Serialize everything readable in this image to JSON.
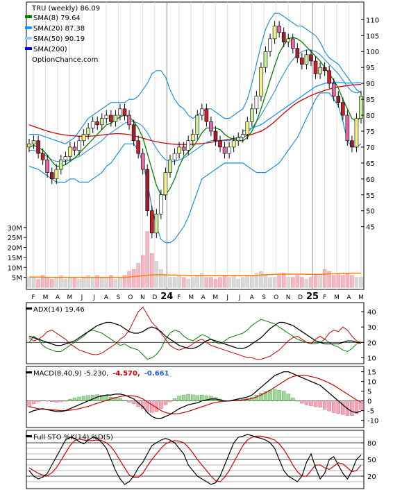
{
  "chart_data": {
    "type": "line",
    "symbol": "TRU",
    "title": "TRU (weekly) 86.09",
    "watermark": "OptionChance.com",
    "x_labels": [
      "F",
      "M",
      "A",
      "M",
      "J",
      "J",
      "A",
      "S",
      "O",
      "N",
      "D",
      "24",
      "F",
      "M",
      "A",
      "M",
      "J",
      "J",
      "A",
      "S",
      "O",
      "N",
      "D",
      "25",
      "F",
      "M",
      "A",
      "M"
    ],
    "legend": [
      {
        "label": "SMA(8) 79.64",
        "color": "#008000"
      },
      {
        "label": "SMA(20) 87.38",
        "color": "#1e90ff"
      },
      {
        "label": "SMA(50) 90.19",
        "color": "#87cefa"
      },
      {
        "label": "SMA(200)",
        "color": "#0000cd"
      }
    ],
    "price_axis": {
      "ticks": [
        110,
        105,
        100,
        95,
        90,
        85,
        80,
        75,
        70,
        65,
        60,
        55,
        50,
        45
      ],
      "ylim": [
        41,
        114
      ]
    },
    "volume_axis": {
      "ticks": [
        "30M",
        "25M",
        "20M",
        "15M",
        "10M",
        "5M"
      ],
      "values": [
        30,
        25,
        20,
        15,
        10,
        5
      ],
      "ylim": [
        0,
        32
      ]
    },
    "series": [
      {
        "name": "Close",
        "values": [
          71,
          72,
          68,
          66,
          62,
          60,
          63,
          66,
          67,
          70,
          69,
          72,
          74,
          76,
          78,
          77,
          79,
          80,
          78,
          80,
          82,
          80,
          77,
          72,
          68,
          63,
          50,
          43,
          49,
          55,
          62,
          66,
          68,
          70,
          69,
          72,
          74,
          80,
          82,
          78,
          75,
          72,
          70,
          68,
          70,
          72,
          73,
          74,
          78,
          82,
          86,
          95,
          100,
          104,
          108,
          106,
          103,
          104,
          101,
          98,
          96,
          99,
          97,
          93,
          95,
          94,
          90,
          86,
          84,
          80,
          72,
          70,
          79,
          86
        ]
      },
      {
        "name": "SMA(8) 79.64",
        "values": [
          70,
          70.5,
          70,
          69,
          67.5,
          65.5,
          64,
          64,
          64.5,
          65.5,
          66.5,
          68,
          69.5,
          71,
          72.5,
          74,
          75.5,
          77,
          77.5,
          78.5,
          79.5,
          80,
          79.5,
          78,
          76,
          73,
          68,
          63,
          58,
          55,
          55,
          57,
          60,
          64,
          67,
          68.5,
          70,
          72,
          74.5,
          76,
          76,
          76,
          75.5,
          74,
          73,
          72.5,
          72,
          72,
          73,
          75,
          78,
          82,
          86.5,
          91,
          95.5,
          99.5,
          102,
          104,
          104.5,
          104,
          103,
          101.5,
          100,
          98.5,
          97,
          95,
          93,
          91,
          88.5,
          85,
          82,
          79,
          78,
          79.6
        ]
      },
      {
        "name": "SMA(20) 87.38",
        "values": [
          69,
          69,
          68.5,
          68,
          67,
          66,
          65.5,
          65.5,
          65.5,
          66,
          66.5,
          67,
          68,
          69,
          70,
          71,
          72,
          73.5,
          74.5,
          75.5,
          76.5,
          77.5,
          78,
          78,
          77.5,
          76.5,
          74.5,
          72,
          69.5,
          67.5,
          66,
          65.5,
          65.5,
          66,
          66.5,
          67.5,
          68.5,
          69.5,
          70.5,
          71.5,
          72,
          72,
          72,
          72,
          72,
          72.5,
          73,
          73.5,
          74.5,
          76,
          78,
          80,
          82.5,
          85,
          87.5,
          90.5,
          93,
          95.5,
          97.5,
          99,
          100,
          100.5,
          100.5,
          100,
          99,
          97.5,
          96,
          94.5,
          93,
          91,
          89,
          87.5,
          87,
          87.4
        ]
      },
      {
        "name": "SMA(50) 90.19",
        "values": [
          null,
          null,
          null,
          null,
          null,
          null,
          null,
          null,
          null,
          null,
          null,
          null,
          null,
          null,
          null,
          null,
          null,
          null,
          null,
          null,
          null,
          null,
          null,
          null,
          null,
          null,
          null,
          null,
          null,
          null,
          null,
          null,
          null,
          null,
          null,
          null,
          null,
          null,
          null,
          null,
          null,
          null,
          null,
          null,
          null,
          null,
          null,
          75,
          75.5,
          76,
          76.5,
          77,
          78,
          79,
          80,
          81,
          82,
          83,
          84,
          85,
          86,
          87,
          88,
          89,
          89.5,
          90,
          90.2,
          90.3,
          90.3,
          90.2,
          90.1,
          90.1,
          90.2,
          90.19
        ]
      },
      {
        "name": "SMA(200)",
        "values": [
          77,
          76.5,
          76,
          75.5,
          75,
          74.6,
          74.3,
          74,
          73.8,
          73.6,
          73.5,
          73.4,
          73.4,
          73.4,
          73.5,
          73.6,
          73.8,
          74,
          74.1,
          74.2,
          74.2,
          74.1,
          73.9,
          73.6,
          73.2,
          72.8,
          72.4,
          72,
          71.7,
          71.4,
          71.2,
          71,
          70.9,
          70.8,
          70.8,
          70.8,
          70.9,
          71,
          71.1,
          71.3,
          71.5,
          71.7,
          72,
          72.2,
          72.4,
          72.7,
          73,
          73.3,
          73.6,
          74,
          74.5,
          75,
          75.8,
          76.8,
          78,
          79.3,
          80.6,
          81.8,
          83,
          84,
          84.8,
          85.5,
          86.2,
          86.8,
          87.3,
          87.8,
          88.2,
          88.6,
          88.9,
          89.1,
          89.3,
          89.5,
          89.6,
          89.7
        ]
      },
      {
        "name": "Bollinger Upper",
        "values": [
          74,
          74,
          74,
          73.5,
          73,
          72.5,
          72,
          71.5,
          71,
          72,
          73,
          75,
          77,
          79,
          80,
          81,
          82,
          83,
          84,
          84,
          84,
          84,
          85,
          85,
          86,
          88,
          90,
          93,
          94,
          94,
          92,
          88,
          85,
          83,
          82,
          80,
          79,
          80,
          81,
          82,
          82,
          81,
          80,
          79,
          79,
          80,
          81,
          82,
          85,
          90,
          96,
          102,
          107,
          110,
          112,
          112,
          111,
          110,
          109,
          108,
          108,
          107,
          106,
          105,
          103,
          100,
          98,
          97,
          96,
          94,
          92,
          90,
          88,
          87
        ]
      },
      {
        "name": "Bollinger Lower",
        "values": [
          64,
          63.5,
          63,
          62,
          61,
          60,
          59,
          59,
          59,
          60,
          60,
          59,
          59,
          59,
          60,
          61,
          62,
          64,
          65,
          67,
          69,
          71,
          71,
          71,
          69,
          65,
          59,
          51,
          45,
          41,
          40,
          40,
          41,
          43,
          45,
          48,
          52,
          56,
          60,
          61,
          62,
          63,
          64,
          65,
          65,
          65,
          65,
          65,
          64,
          63,
          62,
          62,
          62,
          63,
          64,
          65,
          67,
          69,
          71,
          73,
          76,
          79,
          82,
          85,
          87,
          87,
          87,
          85,
          83,
          78,
          72,
          70,
          70,
          71
        ]
      },
      {
        "name": "Volume",
        "values": [
          5,
          5,
          4,
          6,
          5,
          4,
          5,
          6,
          4,
          5,
          5,
          4,
          5,
          6,
          5,
          6,
          5,
          5,
          6,
          4,
          5,
          6,
          8,
          9,
          12,
          16,
          28,
          17,
          13,
          9,
          6,
          5,
          5,
          6,
          5,
          4,
          5,
          6,
          7,
          5,
          5,
          4,
          5,
          6,
          5,
          6,
          4,
          5,
          6,
          6,
          7,
          8,
          6,
          5,
          5,
          6,
          7,
          5,
          5,
          6,
          5,
          4,
          5,
          6,
          6,
          9,
          8,
          6,
          7,
          6,
          7,
          6,
          5,
          5
        ]
      },
      {
        "name": "Volume SMA",
        "values": [
          5.2,
          5.2,
          5.1,
          5.1,
          5,
          5,
          5,
          5,
          5,
          5,
          5,
          5,
          5,
          5,
          5,
          5,
          5,
          5,
          5,
          5,
          5,
          5,
          5.2,
          5.4,
          5.6,
          5.8,
          6,
          6.2,
          6.3,
          6.3,
          6.3,
          6.2,
          6.2,
          6.1,
          6.1,
          6,
          6,
          6,
          6,
          6,
          6,
          6,
          6,
          6,
          6,
          6,
          6,
          6,
          6,
          6,
          6,
          6.2,
          6.3,
          6.4,
          6.5,
          6.6,
          6.6,
          6.6,
          6.6,
          6.6,
          6.6,
          6.5,
          6.5,
          6.5,
          6.5,
          6.6,
          6.7,
          6.8,
          6.9,
          7,
          7,
          7.1,
          7.1,
          7.1
        ]
      }
    ],
    "adx": {
      "label": "ADX(14) 19.46",
      "ticks": [
        40,
        30,
        20,
        10
      ],
      "ylim": [
        7,
        45
      ],
      "adx": [
        24,
        23,
        22,
        21,
        20,
        19,
        18,
        18,
        19,
        20,
        21,
        23,
        25,
        27,
        29,
        31,
        32,
        33,
        33,
        32,
        31,
        29,
        27,
        26,
        26,
        27,
        29,
        30,
        29,
        27,
        24,
        22,
        20,
        18,
        17,
        16,
        16,
        17,
        19,
        21,
        22,
        21,
        20,
        19,
        18,
        17,
        16,
        16,
        17,
        19,
        21,
        23,
        26,
        29,
        31,
        33,
        33,
        32,
        31,
        29,
        27,
        25,
        23,
        21,
        20,
        19,
        19,
        19,
        19,
        20,
        21,
        21,
        20,
        19.5
      ],
      "plus_di": [
        20,
        24,
        22,
        18,
        16,
        15,
        14,
        14,
        16,
        18,
        20,
        22,
        24,
        27,
        28,
        27,
        26,
        24,
        22,
        20,
        18,
        19,
        17,
        16,
        15,
        12,
        9,
        10,
        12,
        16,
        22,
        26,
        28,
        27,
        24,
        22,
        21,
        23,
        25,
        24,
        22,
        20,
        19,
        21,
        23,
        24,
        25,
        26,
        28,
        31,
        33,
        35,
        34,
        33,
        32,
        30,
        28,
        26,
        24,
        22,
        21,
        20,
        19,
        19,
        20,
        22,
        20,
        18,
        17,
        15,
        14,
        16,
        19,
        20
      ],
      "minus_di": [
        23,
        21,
        22,
        24,
        27,
        28,
        26,
        24,
        22,
        19,
        17,
        15,
        14,
        13,
        12,
        12,
        13,
        15,
        17,
        19,
        22,
        24,
        28,
        34,
        40,
        43,
        38,
        33,
        30,
        26,
        22,
        18,
        16,
        15,
        16,
        17,
        19,
        21,
        22,
        20,
        18,
        17,
        16,
        15,
        14,
        13,
        12,
        11,
        10,
        10,
        9,
        9,
        10,
        11,
        13,
        15,
        18,
        21,
        23,
        24,
        22,
        20,
        19,
        22,
        24,
        22,
        26,
        28,
        27,
        30,
        28,
        24,
        21,
        20
      ]
    },
    "macd": {
      "label_prefix": "MACD(8,40,9) -5.230,",
      "macd_value": "-4.570,",
      "signal_value": "-0.661",
      "ticks": [
        15,
        10,
        5,
        0,
        -5,
        -10
      ],
      "ylim": [
        -13,
        17
      ],
      "macd": [
        -6,
        -5,
        -4.5,
        -4,
        -4.5,
        -5,
        -5.5,
        -5.5,
        -5,
        -4,
        -3,
        -2,
        -1,
        0,
        1,
        2,
        2.5,
        3,
        3,
        3.5,
        3.5,
        3,
        2,
        1,
        -1,
        -3,
        -6,
        -8,
        -9,
        -9,
        -8,
        -7,
        -5.5,
        -4,
        -3,
        -2,
        -1.5,
        -1,
        0,
        0.5,
        1,
        1,
        0.5,
        0,
        0,
        0.5,
        1,
        1.5,
        2,
        3,
        5,
        7,
        9,
        11,
        13,
        14,
        15,
        15,
        14,
        13,
        12,
        11,
        10,
        9,
        8,
        6,
        4,
        2,
        0,
        -2,
        -4,
        -5.5,
        -6,
        -5.2
      ],
      "signal": [
        -3,
        -3.5,
        -4,
        -4.2,
        -4.4,
        -4.6,
        -4.8,
        -5,
        -5,
        -4.8,
        -4.5,
        -4,
        -3.4,
        -2.8,
        -2,
        -1.2,
        -0.5,
        0.3,
        1,
        1.6,
        2.2,
        2.6,
        2.7,
        2.5,
        2,
        1,
        -0.5,
        -2,
        -3.5,
        -5,
        -6,
        -6.5,
        -6.7,
        -6.5,
        -6,
        -5.4,
        -4.6,
        -3.8,
        -3,
        -2.2,
        -1.4,
        -0.8,
        -0.4,
        -0.2,
        0,
        0.1,
        0.3,
        0.5,
        0.8,
        1.2,
        2,
        3,
        4.2,
        5.5,
        7,
        8.5,
        10,
        11.5,
        12.5,
        13,
        13.2,
        13,
        12.5,
        12,
        11.2,
        10.3,
        9.2,
        8,
        6.5,
        5,
        3.5,
        2,
        0.5,
        -0.661
      ]
    },
    "sto": {
      "label": "Full STO %K(14) %D(5)",
      "ticks": [
        80,
        50,
        20
      ],
      "ylim": [
        0,
        100
      ],
      "k": [
        30,
        20,
        15,
        18,
        25,
        40,
        55,
        70,
        85,
        90,
        88,
        82,
        78,
        85,
        90,
        88,
        80,
        70,
        50,
        30,
        15,
        5,
        10,
        20,
        35,
        45,
        60,
        75,
        80,
        85,
        88,
        85,
        80,
        70,
        60,
        40,
        30,
        20,
        15,
        10,
        5,
        8,
        20,
        40,
        60,
        80,
        90,
        92,
        95,
        93,
        90,
        88,
        85,
        80,
        70,
        50,
        30,
        20,
        15,
        10,
        20,
        45,
        60,
        35,
        15,
        25,
        50,
        55,
        40,
        25,
        15,
        30,
        50,
        58
      ],
      "d": [
        35,
        30,
        25,
        22,
        21,
        26,
        35,
        48,
        62,
        75,
        84,
        87,
        85,
        84,
        84,
        85,
        84,
        80,
        73,
        62,
        48,
        35,
        22,
        18,
        18,
        25,
        38,
        50,
        60,
        70,
        78,
        82,
        84,
        83,
        80,
        72,
        62,
        50,
        40,
        30,
        20,
        12,
        10,
        18,
        30,
        45,
        60,
        75,
        85,
        90,
        92,
        92,
        90,
        88,
        85,
        78,
        68,
        55,
        40,
        28,
        20,
        20,
        30,
        40,
        40,
        35,
        32,
        38,
        44,
        42,
        35,
        28,
        30,
        40
      ]
    }
  }
}
